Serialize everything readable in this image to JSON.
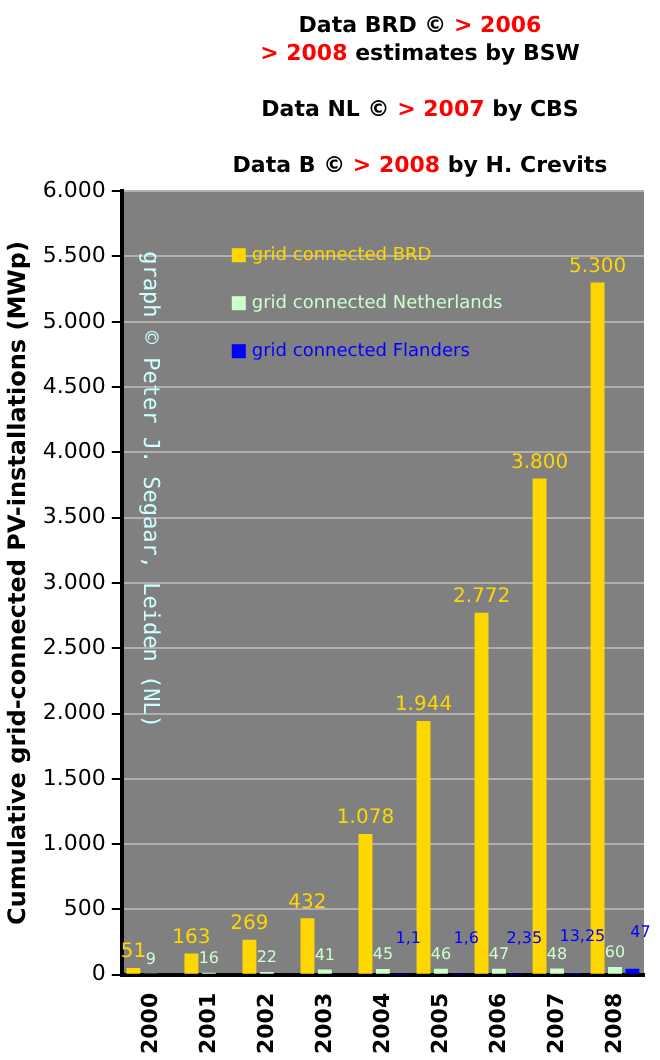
{
  "chart_data": {
    "type": "bar",
    "title": "Data BRD © > 2006\n> 2008 estimates by BSW\n\nData NL © > 2007 by CBS\n\nData B © > 2008 by H. Crevits",
    "ylabel": "Cumulative grid-connected PV-installations (MWp)",
    "annotations": [
      "graph © Peter J. Segaar, Leiden (NL)"
    ],
    "categories": [
      "2000",
      "2001",
      "2002",
      "2003",
      "2004",
      "2005",
      "2006",
      "2007",
      "2008"
    ],
    "series": [
      {
        "name": "grid connected BRD",
        "color": "#ffd700",
        "values": [
          51,
          163,
          269,
          432,
          1078,
          1944,
          2772,
          3800,
          5300
        ],
        "value_labels": [
          "51",
          "163",
          "269",
          "432",
          "1.078",
          "1.944",
          "2.772",
          "3.800",
          "5.300"
        ]
      },
      {
        "name": "grid connected Netherlands",
        "color": "#ccffcc",
        "values": [
          9,
          16,
          22,
          41,
          45,
          46,
          47,
          48,
          60
        ],
        "value_labels": [
          "9",
          "16",
          "22",
          "41",
          "45",
          "46",
          "47",
          "48",
          "60"
        ]
      },
      {
        "name": "grid connected Flanders",
        "color": "#0000ff",
        "values": [
          null,
          null,
          null,
          null,
          1.1,
          1.6,
          2.35,
          13.25,
          47
        ],
        "value_labels": [
          null,
          null,
          null,
          null,
          "1,1",
          "1,6",
          "2,35",
          "13,25",
          "47"
        ]
      }
    ],
    "ylim": [
      0,
      6000
    ],
    "yticks": [
      {
        "value": 0,
        "label": "0"
      },
      {
        "value": 500,
        "label": "500"
      },
      {
        "value": 1000,
        "label": "1.000"
      },
      {
        "value": 1500,
        "label": "1.500"
      },
      {
        "value": 2000,
        "label": "2.000"
      },
      {
        "value": 2500,
        "label": "2.500"
      },
      {
        "value": 3000,
        "label": "3.000"
      },
      {
        "value": 3500,
        "label": "3.500"
      },
      {
        "value": 4000,
        "label": "4.000"
      },
      {
        "value": 4500,
        "label": "4.500"
      },
      {
        "value": 5000,
        "label": "5.000"
      },
      {
        "value": 5500,
        "label": "5.500"
      },
      {
        "value": 6000,
        "label": "6.000"
      }
    ],
    "grid": "y",
    "legend": "top left"
  }
}
